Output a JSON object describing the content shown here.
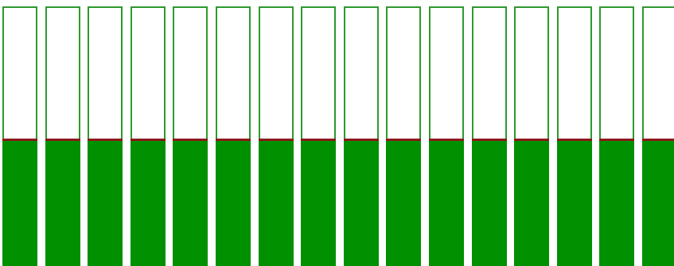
{
  "colors": {
    "frame": "#2e9a2e",
    "fill": "#009000",
    "divider": "#8b1a1a",
    "background": "#ffffff"
  },
  "bars": {
    "count": 16,
    "fill_level": 0.47
  }
}
